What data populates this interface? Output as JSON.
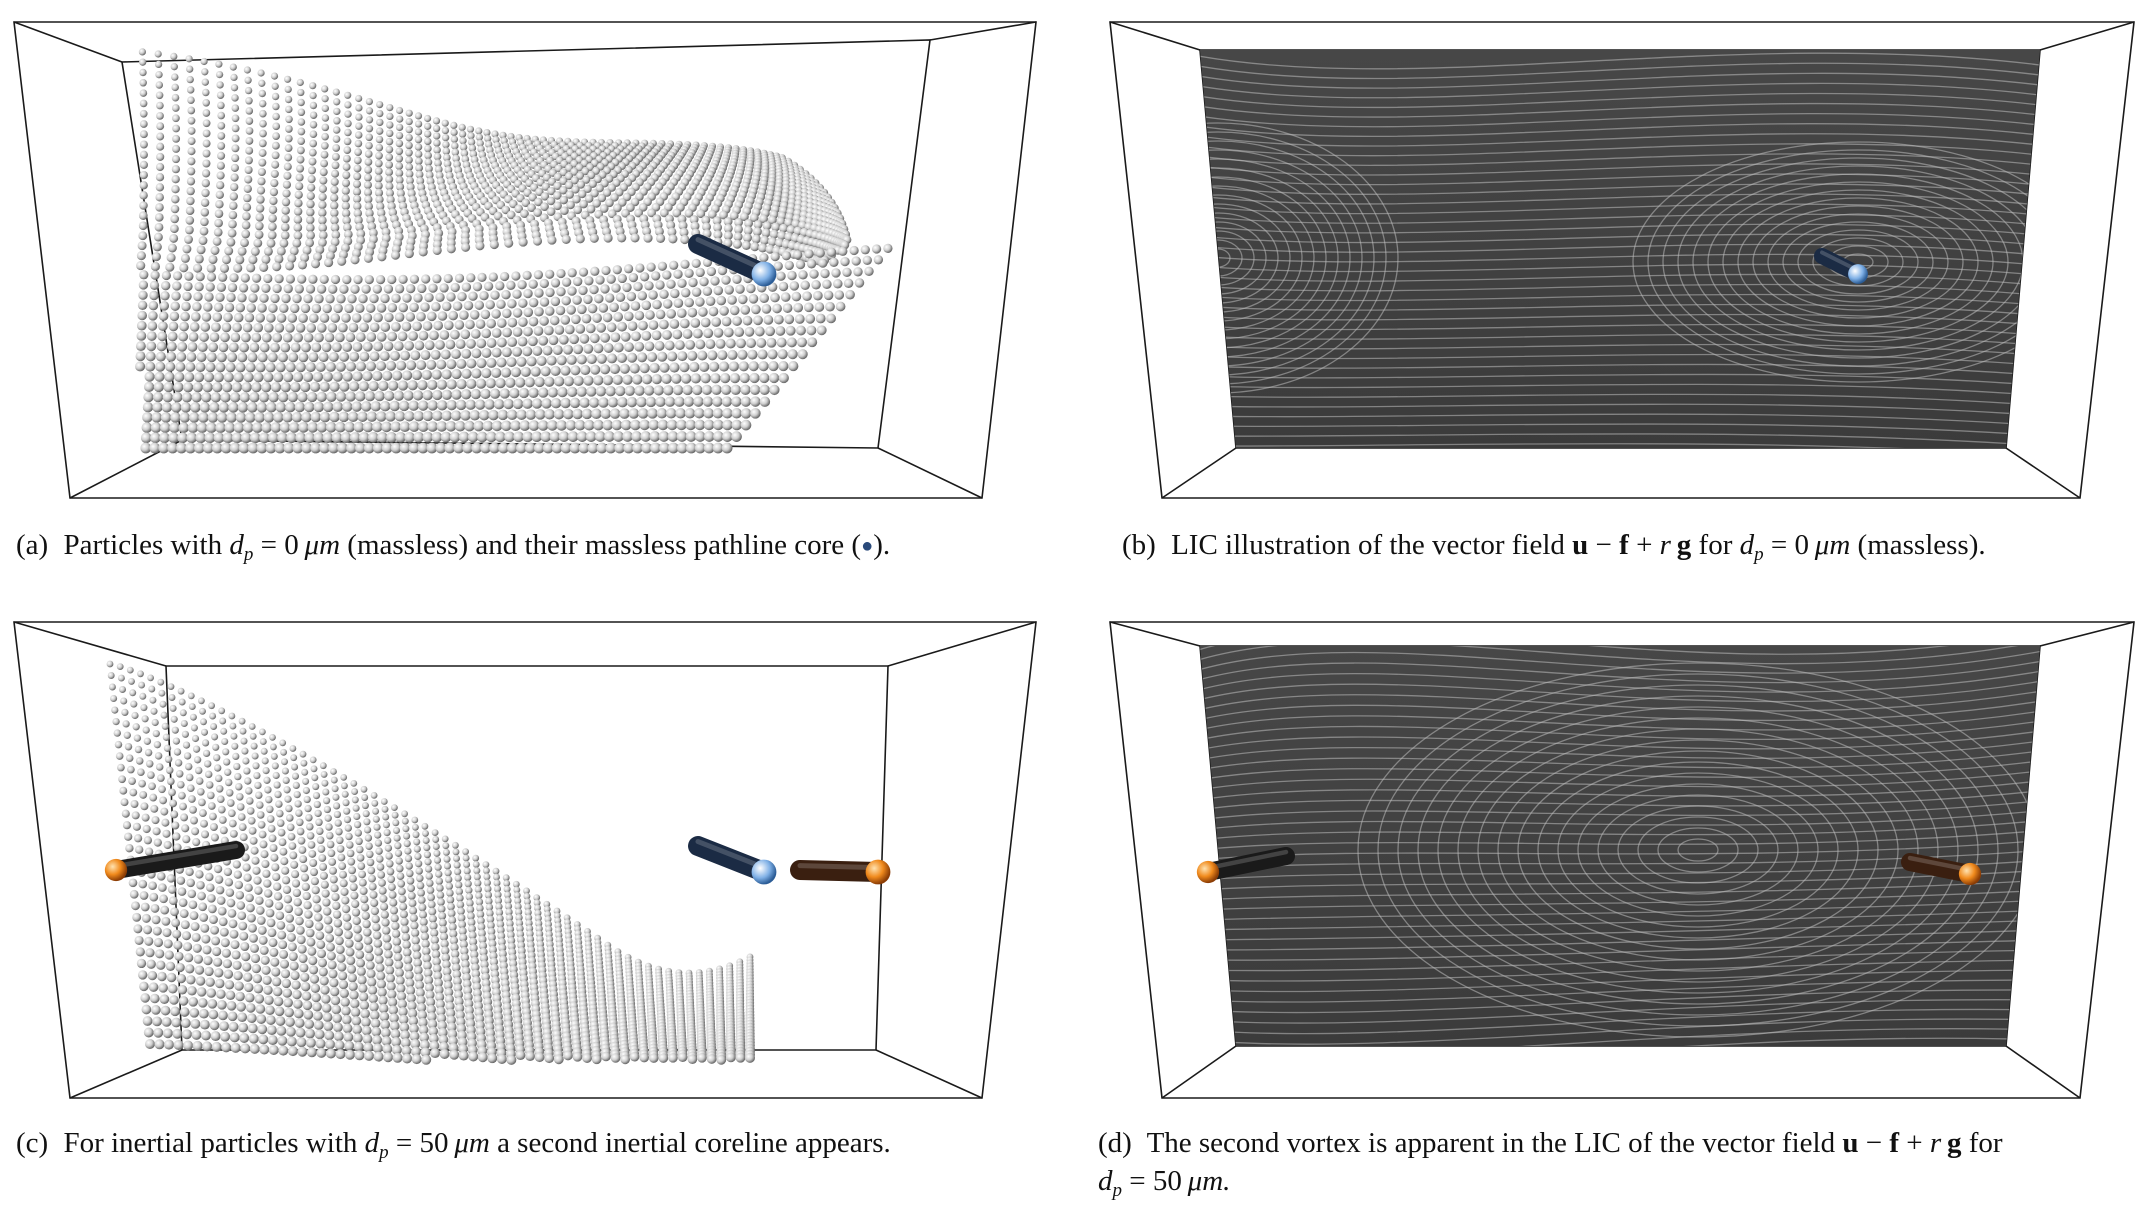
{
  "figure": {
    "panels": [
      {
        "id": "a",
        "label": "(a)",
        "caption_pre": "Particles with",
        "math": "d_p = 0 μm",
        "math_var": "d",
        "math_sub": "p",
        "math_eq": " = 0",
        "math_unit": "μm",
        "caption_post": "(massless) and their massless pathline core (",
        "marker": "●",
        "caption_end": ")."
      },
      {
        "id": "b",
        "label": "(b)",
        "caption_pre": "LIC illustration of the vector field",
        "vec_u": "u",
        "minus": " − ",
        "vec_f": "f",
        "plus": " + ",
        "scalar_r": "r",
        "vec_g": "g",
        "for_word": " for ",
        "math_var": "d",
        "math_sub": "p",
        "math_eq": " = 0",
        "math_unit": "μm",
        "caption_post": "(massless)."
      },
      {
        "id": "c",
        "label": "(c)",
        "caption_pre": "For inertial particles with",
        "math_var": "d",
        "math_sub": "p",
        "math_eq": " = 50",
        "math_unit": "μm",
        "caption_post": "a second inertial coreline appears."
      },
      {
        "id": "d",
        "label": "(d)",
        "caption_pre": "The second vortex is apparent in the LIC of the vector field",
        "vec_u": "u",
        "minus": " − ",
        "vec_f": "f",
        "plus": " + ",
        "scalar_r": "r",
        "vec_g": "g",
        "for_word": " for",
        "math_var": "d",
        "math_sub": "p",
        "math_eq": " = 50",
        "math_unit": "μm."
      }
    ],
    "colors": {
      "frame": "#1a1a1a",
      "particle": "#c9c9c9",
      "lic_dark": "#2a2a2a",
      "lic_light": "#bdbdbd",
      "massless_core": "#1b2b44",
      "massless_tip": "#7fb0e6",
      "inertial_core": "#3a1f10",
      "inertial_tip": "#f08a1c"
    }
  }
}
